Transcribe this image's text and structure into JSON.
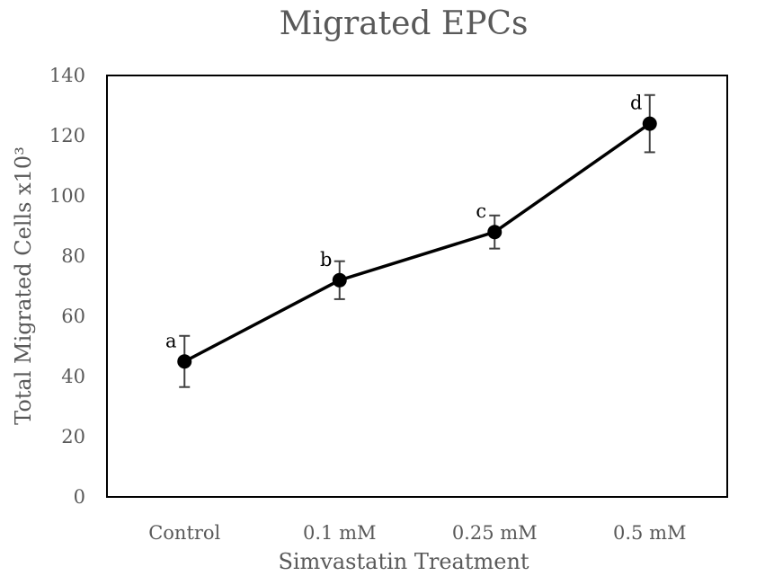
{
  "chart_data": {
    "type": "line",
    "title": "Migrated EPCs",
    "xlabel": "Simvastatin Treatment",
    "ylabel": "Total Migrated Cells x10³",
    "categories": [
      "Control",
      "0.1 mM",
      "0.25 mM",
      "0.5 mM"
    ],
    "values": [
      45,
      72,
      88,
      124
    ],
    "errors": [
      8.5,
      6.3,
      5.5,
      9.5
    ],
    "point_labels": [
      "a",
      "b",
      "c",
      "d"
    ],
    "ylim": [
      0,
      140
    ],
    "yticks": [
      0,
      20,
      40,
      60,
      80,
      100,
      120,
      140
    ],
    "grid": false,
    "legend": "none",
    "colors": {
      "line": "#000000",
      "text": "#595959"
    }
  }
}
